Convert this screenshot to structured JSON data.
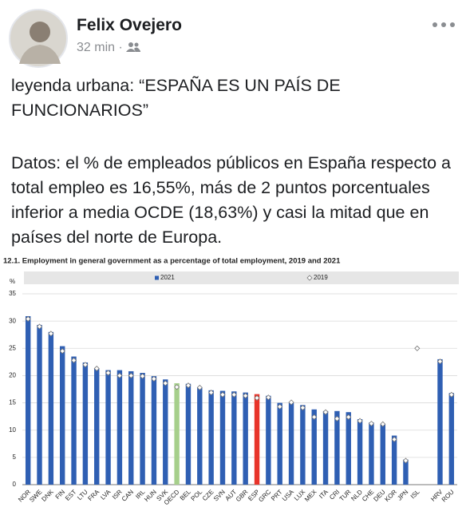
{
  "post": {
    "author": "Felix Ovejero",
    "time": "32 min",
    "separator": "·",
    "paragraphs": [
      "leyenda urbana: “ESPAÑA ES UN PAÍS DE FUNCIONARIOS”",
      "Datos: el % de empleados públicos en España respecto a total empleo es 16,55%, más de 2 puntos porcentuales inferior a media OCDE (18,63%) y casi la mitad que en países del norte de Europa."
    ]
  },
  "chart_data": {
    "type": "bar",
    "title": "12.1. Employment in general government as a percentage of total employment, 2019 and 2021",
    "y_label": "%",
    "categories": [
      "NOR",
      "SWE",
      "DNK",
      "FIN",
      "EST",
      "LTU",
      "FRA",
      "LVA",
      "ISR",
      "CAN",
      "IRL",
      "HUN",
      "SVK",
      "OECD",
      "BEL",
      "POL",
      "CZE",
      "SVN",
      "AUT",
      "GBR",
      "ESP",
      "GRC",
      "PRT",
      "USA",
      "LUX",
      "MEX",
      "ITA",
      "CRI",
      "TUR",
      "NLD",
      "CHE",
      "DEU",
      "KOR",
      "JPN",
      "ISL",
      null,
      "HRV",
      "ROU"
    ],
    "series": [
      {
        "name": "2021",
        "marker": "bar",
        "color": "#2f5fb3",
        "colors": [
          "#2f5fb3",
          "#2f5fb3",
          "#2f5fb3",
          "#2f5fb3",
          "#2f5fb3",
          "#2f5fb3",
          "#2f5fb3",
          "#2f5fb3",
          "#2f5fb3",
          "#2f5fb3",
          "#2f5fb3",
          "#2f5fb3",
          "#2f5fb3",
          "#a6cf8b",
          "#2f5fb3",
          "#2f5fb3",
          "#2f5fb3",
          "#2f5fb3",
          "#2f5fb3",
          "#2f5fb3",
          "#e8342a",
          "#2f5fb3",
          "#2f5fb3",
          "#2f5fb3",
          "#2f5fb3",
          "#2f5fb3",
          "#2f5fb3",
          "#2f5fb3",
          "#2f5fb3",
          "#2f5fb3",
          "#2f5fb3",
          "#2f5fb3",
          "#2f5fb3",
          "#2f5fb3",
          "#2f5fb3",
          "#2f5fb3",
          "#2f5fb3",
          "#2f5fb3"
        ],
        "values": [
          30.9,
          29.3,
          28.0,
          25.4,
          23.5,
          22.4,
          21.3,
          21.0,
          21.0,
          20.8,
          20.5,
          19.9,
          19.3,
          18.6,
          18.5,
          17.9,
          17.3,
          17.2,
          17.1,
          16.9,
          16.6,
          16.3,
          15.0,
          15.0,
          14.6,
          13.8,
          13.5,
          13.5,
          13.3,
          12.0,
          11.4,
          11.0,
          9.0,
          4.6,
          null,
          null,
          23.0,
          16.8
        ]
      },
      {
        "name": "2019",
        "marker": "diamond",
        "color": "#ffffff",
        "values": [
          30.4,
          29.0,
          27.7,
          24.5,
          22.8,
          22.0,
          21.3,
          20.5,
          20.0,
          20.0,
          19.9,
          19.4,
          18.6,
          17.9,
          18.2,
          17.8,
          16.9,
          16.5,
          16.5,
          16.3,
          15.9,
          16.0,
          14.3,
          15.1,
          14.1,
          12.4,
          13.3,
          12.1,
          12.4,
          11.7,
          11.2,
          11.1,
          8.3,
          4.4,
          25.0,
          null,
          22.6,
          16.5
        ]
      }
    ],
    "ylim": [
      0,
      35
    ],
    "yticks": [
      0,
      5,
      10,
      15,
      20,
      25,
      30,
      35
    ],
    "grid": true
  }
}
